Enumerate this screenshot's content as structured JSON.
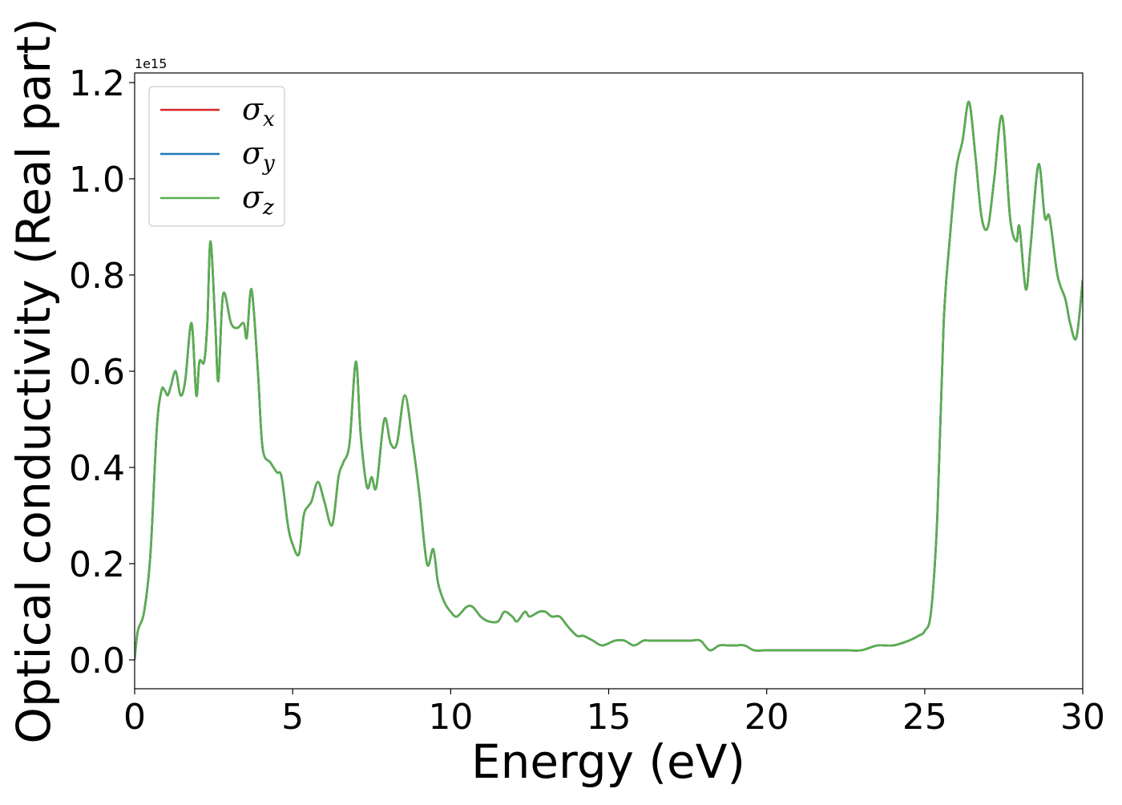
{
  "chart_data": {
    "type": "line",
    "xlabel": "Energy (eV)",
    "ylabel": "Optical conductivity (Real part)",
    "y_offset_text": "1e15",
    "xlim": [
      0,
      30
    ],
    "ylim": [
      -0.06,
      1.22
    ],
    "y_scale_factor": "1e15",
    "grid": false,
    "legend_position": "upper-left",
    "x_ticks": [
      "0",
      "5",
      "10",
      "15",
      "20",
      "25",
      "30"
    ],
    "y_ticks": [
      "0.0",
      "0.2",
      "0.4",
      "0.6",
      "0.8",
      "1.0",
      "1.2"
    ],
    "series": [
      {
        "name": "σx",
        "symbol": "σ",
        "subscript": "x",
        "color": "#d62728"
      },
      {
        "name": "σy",
        "symbol": "σ",
        "subscript": "y",
        "color": "#1f77b4"
      },
      {
        "name": "σz",
        "symbol": "σ",
        "subscript": "z",
        "color": "#5aae4f"
      }
    ],
    "x": [
      0,
      0.1,
      0.3,
      0.5,
      0.7,
      0.85,
      0.95,
      1.05,
      1.15,
      1.3,
      1.45,
      1.6,
      1.8,
      1.95,
      2.05,
      2.2,
      2.3,
      2.4,
      2.55,
      2.65,
      2.8,
      3.05,
      3.25,
      3.45,
      3.55,
      3.7,
      3.9,
      4.05,
      4.3,
      4.5,
      4.65,
      4.85,
      5.0,
      5.2,
      5.35,
      5.5,
      5.6,
      5.8,
      6.0,
      6.25,
      6.45,
      6.6,
      6.8,
      7.0,
      7.15,
      7.35,
      7.5,
      7.65,
      7.9,
      8.1,
      8.3,
      8.55,
      8.8,
      9.0,
      9.25,
      9.45,
      9.6,
      9.8,
      10.0,
      10.2,
      10.5,
      10.7,
      10.95,
      11.2,
      11.5,
      11.7,
      11.95,
      12.1,
      12.35,
      12.5,
      12.8,
      13.0,
      13.2,
      13.45,
      13.7,
      14.0,
      14.2,
      14.5,
      14.8,
      15.2,
      15.5,
      15.8,
      16.1,
      16.3,
      16.6,
      17.0,
      17.3,
      17.6,
      17.9,
      18.2,
      18.5,
      18.8,
      19.0,
      19.3,
      19.6,
      20.0,
      20.3,
      20.8,
      21.2,
      21.7,
      22.0,
      22.5,
      23.0,
      23.5,
      24.0,
      24.5,
      24.8,
      25.0,
      25.2,
      25.4,
      25.6,
      25.8,
      26.0,
      26.2,
      26.4,
      26.6,
      26.8,
      27.0,
      27.2,
      27.45,
      27.7,
      27.9,
      28.0,
      28.2,
      28.35,
      28.6,
      28.8,
      28.95,
      29.2,
      29.45,
      29.6,
      29.8,
      30.0
    ],
    "y": [
      0.0,
      0.06,
      0.1,
      0.22,
      0.48,
      0.56,
      0.56,
      0.55,
      0.57,
      0.6,
      0.55,
      0.58,
      0.7,
      0.55,
      0.62,
      0.62,
      0.7,
      0.87,
      0.7,
      0.58,
      0.76,
      0.7,
      0.69,
      0.7,
      0.67,
      0.77,
      0.6,
      0.44,
      0.41,
      0.39,
      0.38,
      0.28,
      0.24,
      0.22,
      0.3,
      0.32,
      0.33,
      0.37,
      0.33,
      0.28,
      0.38,
      0.41,
      0.45,
      0.62,
      0.47,
      0.36,
      0.38,
      0.36,
      0.5,
      0.45,
      0.45,
      0.55,
      0.45,
      0.35,
      0.2,
      0.23,
      0.16,
      0.12,
      0.1,
      0.09,
      0.11,
      0.11,
      0.09,
      0.08,
      0.08,
      0.1,
      0.09,
      0.08,
      0.1,
      0.09,
      0.1,
      0.1,
      0.09,
      0.09,
      0.07,
      0.05,
      0.05,
      0.04,
      0.03,
      0.04,
      0.04,
      0.03,
      0.04,
      0.04,
      0.04,
      0.04,
      0.04,
      0.04,
      0.04,
      0.02,
      0.03,
      0.03,
      0.03,
      0.03,
      0.02,
      0.02,
      0.02,
      0.02,
      0.02,
      0.02,
      0.02,
      0.02,
      0.02,
      0.03,
      0.03,
      0.04,
      0.05,
      0.06,
      0.1,
      0.3,
      0.7,
      0.88,
      1.02,
      1.08,
      1.16,
      1.05,
      0.92,
      0.9,
      1.0,
      1.13,
      0.92,
      0.87,
      0.9,
      0.77,
      0.86,
      1.03,
      0.92,
      0.92,
      0.8,
      0.75,
      0.7,
      0.67,
      0.79
    ]
  }
}
